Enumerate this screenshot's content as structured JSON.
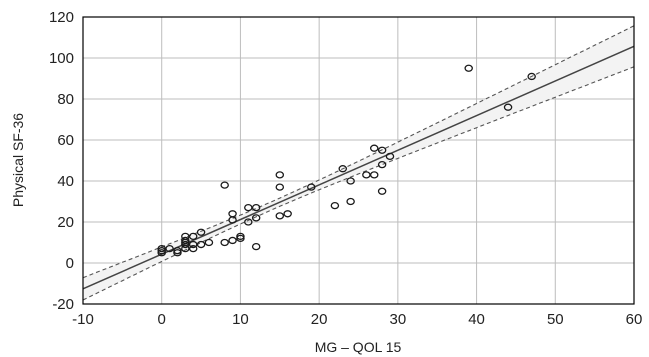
{
  "chart_data": {
    "type": "scatter",
    "title": "",
    "xlabel": "MG – QOL 15",
    "ylabel": "Physical SF-36",
    "xlim": [
      -10,
      60
    ],
    "ylim": [
      -20,
      120
    ],
    "xticks": [
      -10,
      0,
      10,
      20,
      30,
      40,
      50,
      60
    ],
    "yticks": [
      -20,
      0,
      20,
      40,
      60,
      80,
      100,
      120
    ],
    "grid": true,
    "points": [
      {
        "x": 0,
        "y": 5
      },
      {
        "x": 0,
        "y": 6
      },
      {
        "x": 0,
        "y": 7
      },
      {
        "x": 1,
        "y": 7
      },
      {
        "x": 2,
        "y": 5
      },
      {
        "x": 2,
        "y": 6
      },
      {
        "x": 3,
        "y": 7
      },
      {
        "x": 3,
        "y": 9
      },
      {
        "x": 3,
        "y": 10
      },
      {
        "x": 3,
        "y": 11
      },
      {
        "x": 3,
        "y": 13
      },
      {
        "x": 4,
        "y": 7
      },
      {
        "x": 4,
        "y": 9
      },
      {
        "x": 4,
        "y": 13
      },
      {
        "x": 5,
        "y": 9
      },
      {
        "x": 5,
        "y": 15
      },
      {
        "x": 6,
        "y": 10
      },
      {
        "x": 8,
        "y": 10
      },
      {
        "x": 8,
        "y": 38
      },
      {
        "x": 9,
        "y": 11
      },
      {
        "x": 9,
        "y": 21
      },
      {
        "x": 9,
        "y": 24
      },
      {
        "x": 10,
        "y": 12
      },
      {
        "x": 10,
        "y": 13
      },
      {
        "x": 11,
        "y": 20
      },
      {
        "x": 11,
        "y": 27
      },
      {
        "x": 12,
        "y": 8
      },
      {
        "x": 12,
        "y": 22
      },
      {
        "x": 12,
        "y": 27
      },
      {
        "x": 15,
        "y": 23
      },
      {
        "x": 15,
        "y": 37
      },
      {
        "x": 15,
        "y": 43
      },
      {
        "x": 16,
        "y": 24
      },
      {
        "x": 19,
        "y": 37
      },
      {
        "x": 22,
        "y": 28
      },
      {
        "x": 23,
        "y": 46
      },
      {
        "x": 24,
        "y": 30
      },
      {
        "x": 24,
        "y": 40
      },
      {
        "x": 26,
        "y": 43
      },
      {
        "x": 27,
        "y": 43
      },
      {
        "x": 27,
        "y": 56
      },
      {
        "x": 28,
        "y": 35
      },
      {
        "x": 28,
        "y": 48
      },
      {
        "x": 28,
        "y": 55
      },
      {
        "x": 29,
        "y": 52
      },
      {
        "x": 39,
        "y": 95
      },
      {
        "x": 44,
        "y": 76
      },
      {
        "x": 47,
        "y": 91
      }
    ],
    "fit_line": {
      "intercept": 4.3,
      "slope": 1.69
    },
    "confidence_band": {
      "half_width_at_mean": 2,
      "half_width_at_ends": 10
    },
    "colors": {
      "points": "#1a1a1a",
      "fit": "#444444",
      "band": "#555555",
      "grid": "#bdbdbd"
    }
  }
}
